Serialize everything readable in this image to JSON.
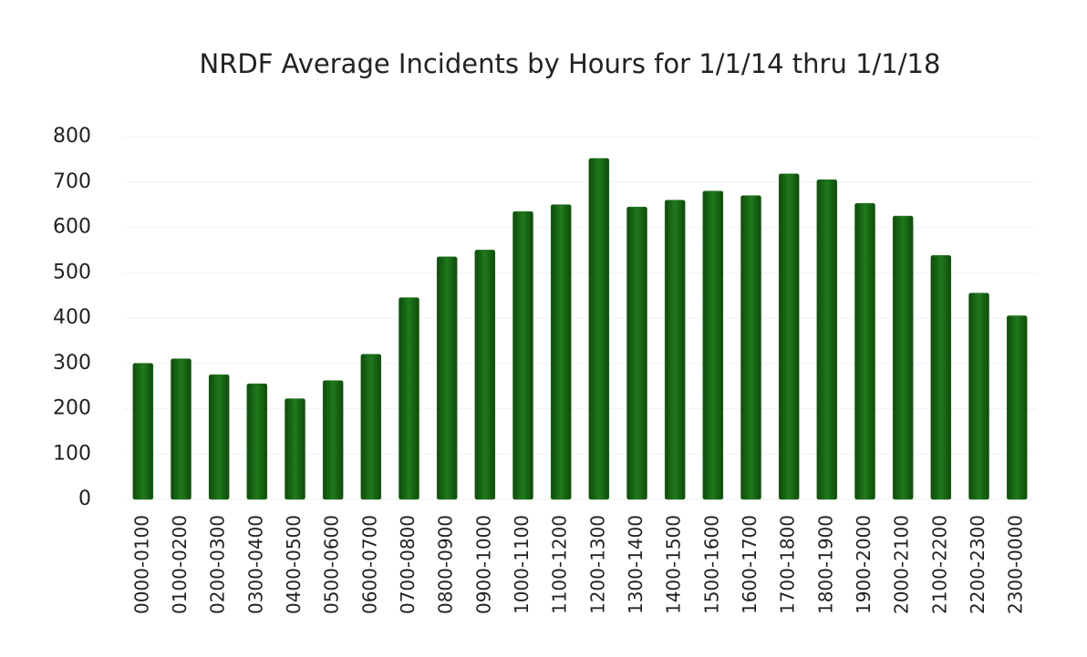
{
  "chart_data": {
    "type": "bar",
    "title": "NRDF Average Incidents  by Hours for 1/1/14 thru 1/1/18",
    "categories": [
      "0000-0100",
      "0100-0200",
      "0200-0300",
      "0300-0400",
      "0400-0500",
      "0500-0600",
      "0600-0700",
      "0700-0800",
      "0800-0900",
      "0900-1000",
      "1000-1100",
      "1100-1200",
      "1200-1300",
      "1300-1400",
      "1400-1500",
      "1500-1600",
      "1600-1700",
      "1700-1800",
      "1800-1900",
      "1900-2000",
      "2000-2100",
      "2100-2200",
      "2200-2300",
      "2300-0000"
    ],
    "values": [
      300,
      310,
      275,
      255,
      222,
      262,
      320,
      445,
      535,
      550,
      635,
      650,
      752,
      645,
      660,
      680,
      670,
      718,
      705,
      653,
      625,
      538,
      455,
      405
    ],
    "color": "#1e6b1a",
    "ylim": [
      0,
      800
    ],
    "yticks": [
      0,
      100,
      200,
      300,
      400,
      500,
      600,
      700,
      800
    ],
    "grid": true
  }
}
